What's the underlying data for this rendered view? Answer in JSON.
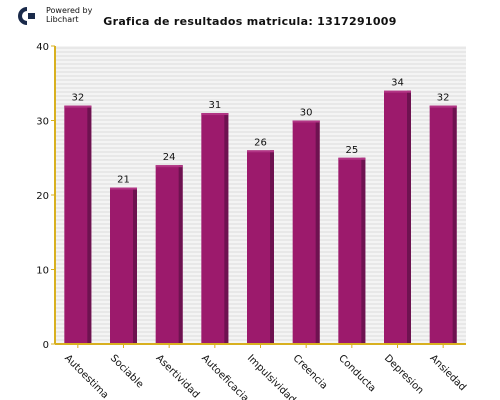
{
  "logo": {
    "line1": "Powered by",
    "line2": "Libchart",
    "icon": "libchart-logo-icon"
  },
  "colors": {
    "bar": "#9c1a6c",
    "bar_dark": "#6e1250",
    "bar_top": "#b23585",
    "axis": "#d8b020",
    "grid": "#dcdcdc",
    "plot_bg": "#f4f4f4"
  },
  "chart_data": {
    "type": "bar",
    "title": "Grafica de resultados matricula: 1317291009",
    "categories": [
      "Autoestima",
      "Sociable",
      "Asertividad",
      "Autoeficacia",
      "Impulsividad",
      "Creencia",
      "Conducta",
      "Depresion",
      "Ansiedad"
    ],
    "values": [
      32,
      21,
      24,
      31,
      26,
      30,
      25,
      34,
      32
    ],
    "ylim": [
      0,
      40
    ],
    "yticks": [
      0,
      10,
      20,
      30,
      40
    ],
    "grid": true,
    "legend": "none"
  }
}
